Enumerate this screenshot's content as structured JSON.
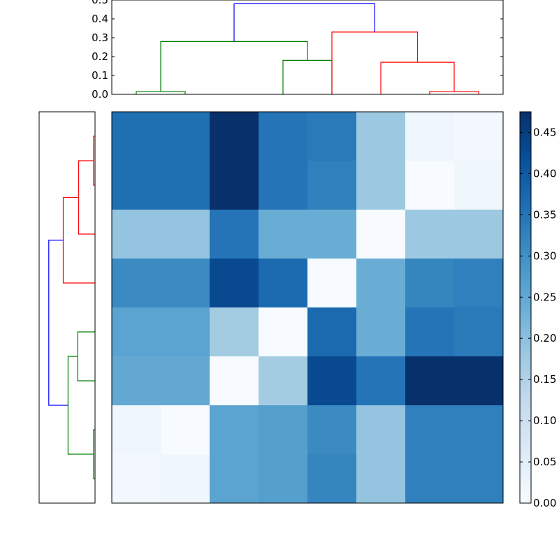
{
  "chart_data": [
    {
      "type": "dendrogram",
      "orientation": "top",
      "leaves": 8,
      "ylim": [
        0,
        0.5
      ],
      "yticks": [
        "0.0",
        "0.1",
        "0.2",
        "0.3",
        "0.4",
        "0.5"
      ],
      "links": [
        {
          "left": 0,
          "right": 1,
          "height": 0.015,
          "color": "#008000"
        },
        {
          "left": 3,
          "right": 4,
          "height": 0.18,
          "color": "#008000"
        },
        {
          "left": "0-1",
          "right": "3-4",
          "leftpos": 0.5,
          "rightpos": 3.5,
          "height": 0.28,
          "color": "#008000"
        },
        {
          "left": 6,
          "right": 7,
          "height": 0.015,
          "color": "#ff0000"
        },
        {
          "left": 5,
          "right": "6-7",
          "leftpos": 5,
          "rightpos": 6.5,
          "height": 0.17,
          "color": "#ff0000"
        },
        {
          "left": 4,
          "right": "5-7",
          "leftpos": 4,
          "rightpos": 5.75,
          "height": 0.33,
          "color": "#ff0000"
        },
        {
          "left": "0-4",
          "right": "4-7",
          "leftpos": 2,
          "rightpos": 4.875,
          "height": 0.48,
          "color": "#0000ff"
        }
      ]
    },
    {
      "type": "dendrogram",
      "orientation": "left",
      "leaves": 8,
      "links": [
        {
          "leftpos": 0,
          "rightpos": 1,
          "height": 0.015,
          "color": "#ff0000"
        },
        {
          "leftpos": 0.5,
          "rightpos": 2,
          "height": 0.17,
          "color": "#ff0000"
        },
        {
          "leftpos": 1.25,
          "rightpos": 3,
          "height": 0.33,
          "color": "#ff0000"
        },
        {
          "leftpos": 4,
          "rightpos": 5,
          "height": 0.18,
          "color": "#008000"
        },
        {
          "leftpos": 6,
          "rightpos": 7,
          "height": 0.015,
          "color": "#008000"
        },
        {
          "leftpos": 4.5,
          "rightpos": 6.5,
          "height": 0.28,
          "color": "#008000"
        },
        {
          "leftpos": 2.125,
          "rightpos": 5.5,
          "height": 0.48,
          "color": "#0000ff"
        }
      ]
    },
    {
      "type": "heatmap",
      "rows": 8,
      "cols": 8,
      "colormap": "Blues",
      "vmin": 0,
      "vmax": 0.475,
      "values": [
        [
          0.36,
          0.36,
          0.475,
          0.35,
          0.34,
          0.18,
          0.02,
          0.01
        ],
        [
          0.36,
          0.36,
          0.475,
          0.35,
          0.33,
          0.18,
          0.0,
          0.02
        ],
        [
          0.19,
          0.19,
          0.35,
          0.24,
          0.24,
          0.0,
          0.18,
          0.18
        ],
        [
          0.31,
          0.31,
          0.43,
          0.37,
          0.0,
          0.24,
          0.32,
          0.33
        ],
        [
          0.26,
          0.26,
          0.17,
          0.0,
          0.37,
          0.24,
          0.35,
          0.34
        ],
        [
          0.25,
          0.25,
          0.0,
          0.17,
          0.43,
          0.35,
          0.475,
          0.475
        ],
        [
          0.02,
          0.0,
          0.26,
          0.27,
          0.31,
          0.19,
          0.33,
          0.33
        ],
        [
          0.01,
          0.02,
          0.26,
          0.27,
          0.32,
          0.19,
          0.33,
          0.33
        ]
      ]
    },
    {
      "type": "colorbar",
      "colormap": "Blues",
      "range": [
        0,
        0.475
      ],
      "ticks": [
        "0.00",
        "0.05",
        "0.10",
        "0.15",
        "0.20",
        "0.25",
        "0.30",
        "0.35",
        "0.40",
        "0.45"
      ]
    }
  ]
}
